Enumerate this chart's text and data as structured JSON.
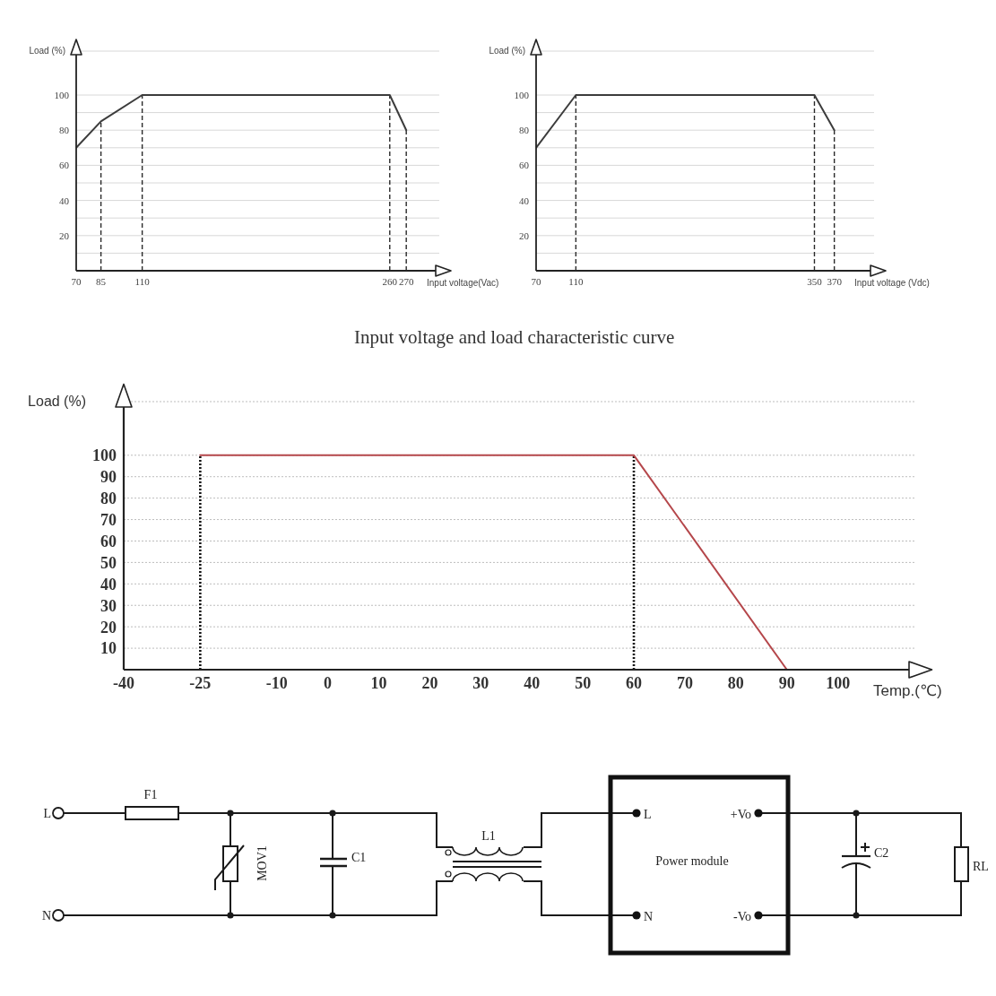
{
  "chart_data": [
    {
      "type": "line",
      "x": [
        70,
        85,
        110,
        260,
        270
      ],
      "values": [
        70,
        85,
        100,
        100,
        80
      ],
      "color": "#3c3c3c",
      "xlim": [
        70,
        290
      ],
      "xticks": [
        70,
        85,
        110,
        260,
        270
      ],
      "ylim": [
        0,
        125
      ],
      "yticks": [
        {
          "value": 10,
          "label": null
        },
        20,
        {
          "value": 30,
          "label": null
        },
        40,
        {
          "value": 50,
          "label": null
        },
        60,
        {
          "value": 70,
          "label": null
        },
        80,
        {
          "value": 90,
          "label": null
        },
        100
      ],
      "grid": "y",
      "xlabel": "Input voltage(Vac)",
      "ylabel": "Load (%)",
      "ref_lines": [
        {
          "axis": "x",
          "value": 85,
          "color": "#2a2a2a",
          "line_style": "dashed"
        },
        {
          "axis": "x",
          "value": 110,
          "color": "#2a2a2a",
          "line_style": "dashed"
        },
        {
          "axis": "x",
          "value": 260,
          "color": "#2a2a2a",
          "line_style": "dashed"
        },
        {
          "axis": "x",
          "value": 270,
          "color": "#2a2a2a",
          "line_style": "dashed"
        }
      ],
      "annotations": [
        "Input voltage and load characteristic curve"
      ]
    },
    {
      "type": "line",
      "x": [
        70,
        110,
        350,
        370
      ],
      "values": [
        70,
        100,
        100,
        80
      ],
      "color": "#3c3c3c",
      "xlim": [
        70,
        410
      ],
      "xticks": [
        70,
        110,
        350,
        370
      ],
      "ylim": [
        0,
        125
      ],
      "yticks": [
        {
          "value": 10,
          "label": null
        },
        20,
        {
          "value": 30,
          "label": null
        },
        40,
        {
          "value": 50,
          "label": null
        },
        60,
        {
          "value": 70,
          "label": null
        },
        80,
        {
          "value": 90,
          "label": null
        },
        100
      ],
      "grid": "y",
      "xlabel": "Input voltage (Vdc)",
      "ylabel": "Load (%)",
      "ref_lines": [
        {
          "axis": "x",
          "value": 110,
          "color": "#2a2a2a",
          "line_style": "dashed"
        },
        {
          "axis": "x",
          "value": 350,
          "color": "#2a2a2a",
          "line_style": "dashed"
        },
        {
          "axis": "x",
          "value": 370,
          "color": "#2a2a2a",
          "line_style": "dashed"
        }
      ]
    },
    {
      "type": "line",
      "x": [
        -25,
        60,
        90
      ],
      "values": [
        100,
        100,
        0
      ],
      "color": "#b5474b",
      "xlim": [
        -40,
        115
      ],
      "xticks": [
        -40,
        -25,
        -10,
        0,
        10,
        20,
        30,
        40,
        50,
        60,
        70,
        80,
        90,
        100
      ],
      "ylim": [
        0,
        125
      ],
      "yticks": [
        10,
        20,
        30,
        40,
        50,
        60,
        70,
        80,
        90,
        100
      ],
      "grid": "y",
      "xlabel": "Temp.(℃)",
      "ylabel": "Load (%)",
      "ref_lines": [
        {
          "axis": "x",
          "value": -25,
          "color": "#111111",
          "line_style": "dotted"
        },
        {
          "axis": "x",
          "value": 60,
          "color": "#111111",
          "line_style": "dotted"
        }
      ]
    },
    {
      "type": "other",
      "annotations": [
        "L",
        "N",
        "F1",
        "MOV1",
        "C1",
        "L1",
        "Power module",
        "L",
        "N",
        "+Vo",
        "-Vo",
        "C2",
        "RL"
      ]
    }
  ]
}
